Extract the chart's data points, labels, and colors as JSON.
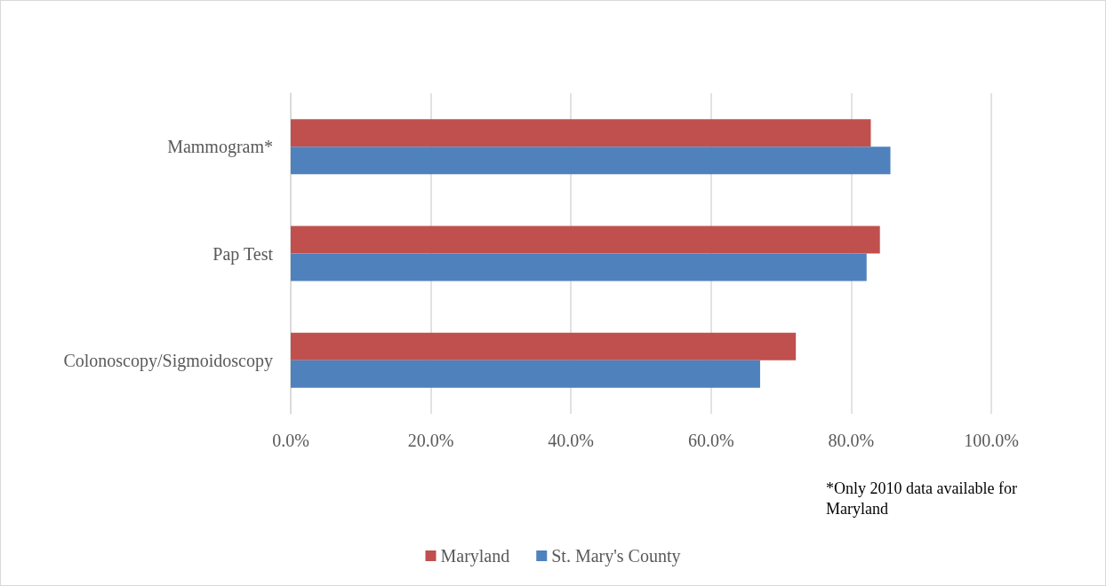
{
  "chart_data": {
    "type": "bar",
    "orientation": "horizontal",
    "categories": [
      "Mammogram*",
      "Pap Test",
      "Colonoscopy/Sigmoidoscopy"
    ],
    "series": [
      {
        "name": "Maryland",
        "color": "#c0504d",
        "values": [
          82.8,
          84.1,
          72.1
        ]
      },
      {
        "name": "St. Mary's County",
        "color": "#4f81bd",
        "values": [
          85.6,
          82.2,
          67.0
        ]
      }
    ],
    "xlim": [
      0,
      100
    ],
    "xticks": [
      {
        "value": 0,
        "label": "0.0%"
      },
      {
        "value": 20,
        "label": "20.0%"
      },
      {
        "value": 40,
        "label": "40.0%"
      },
      {
        "value": 60,
        "label": "60.0%"
      },
      {
        "value": 80,
        "label": "80.0%"
      },
      {
        "value": 100,
        "label": "100.0%"
      }
    ],
    "grid": "x",
    "legend": "bottom",
    "annotations": [
      "*Only 2010 data available for Maryland"
    ]
  }
}
